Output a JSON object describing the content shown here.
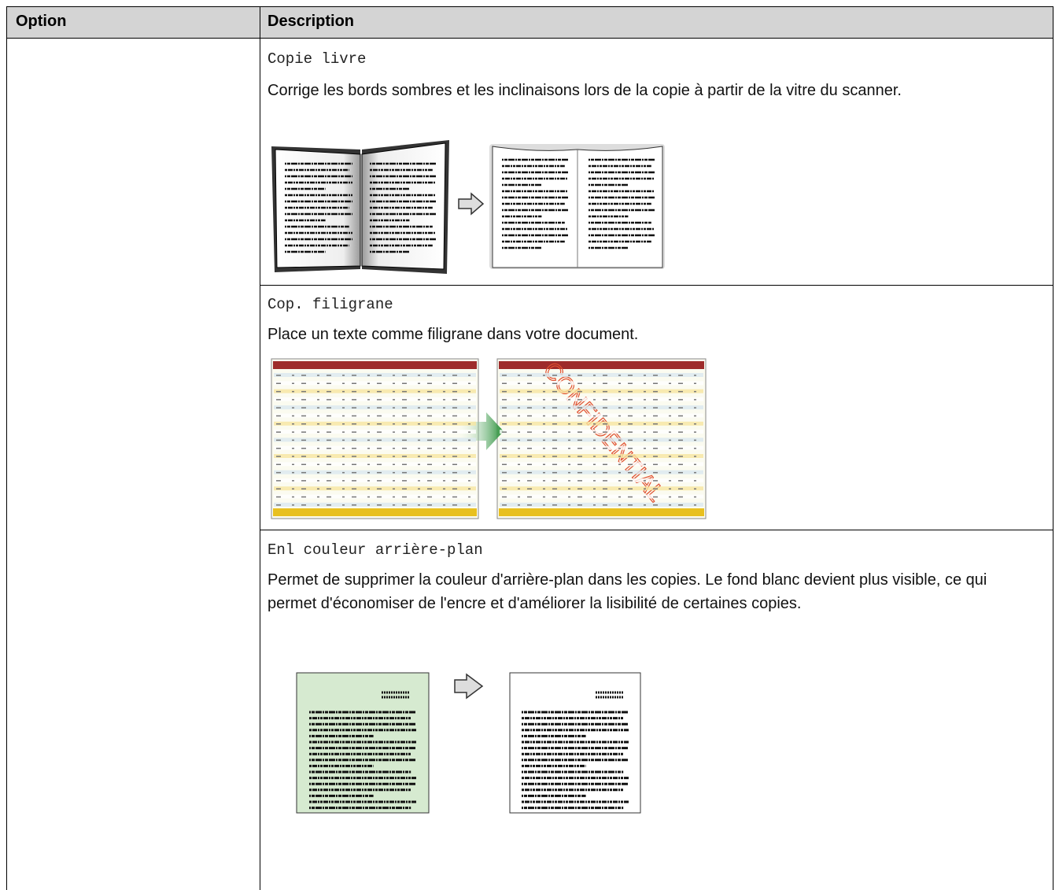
{
  "table": {
    "header": [
      "Option",
      "Description"
    ],
    "rows": [
      {
        "name": "Copie livre",
        "description": "Corrige les bords sombres et les inclinaisons lors de la copie à partir de la vitre du scanner."
      },
      {
        "name": "Cop. filigrane",
        "description": "Place un texte comme filigrane dans votre document.",
        "image_text": "CONFIDENTIAL"
      },
      {
        "name": "Enl couleur arrière-plan",
        "description": "Permet de supprimer la couleur d'arrière-plan dans les copies. Le fond blanc devient plus visible, ce qui permet d'économiser de l'encre et d'améliorer la lisibilité de certaines copies."
      }
    ]
  }
}
